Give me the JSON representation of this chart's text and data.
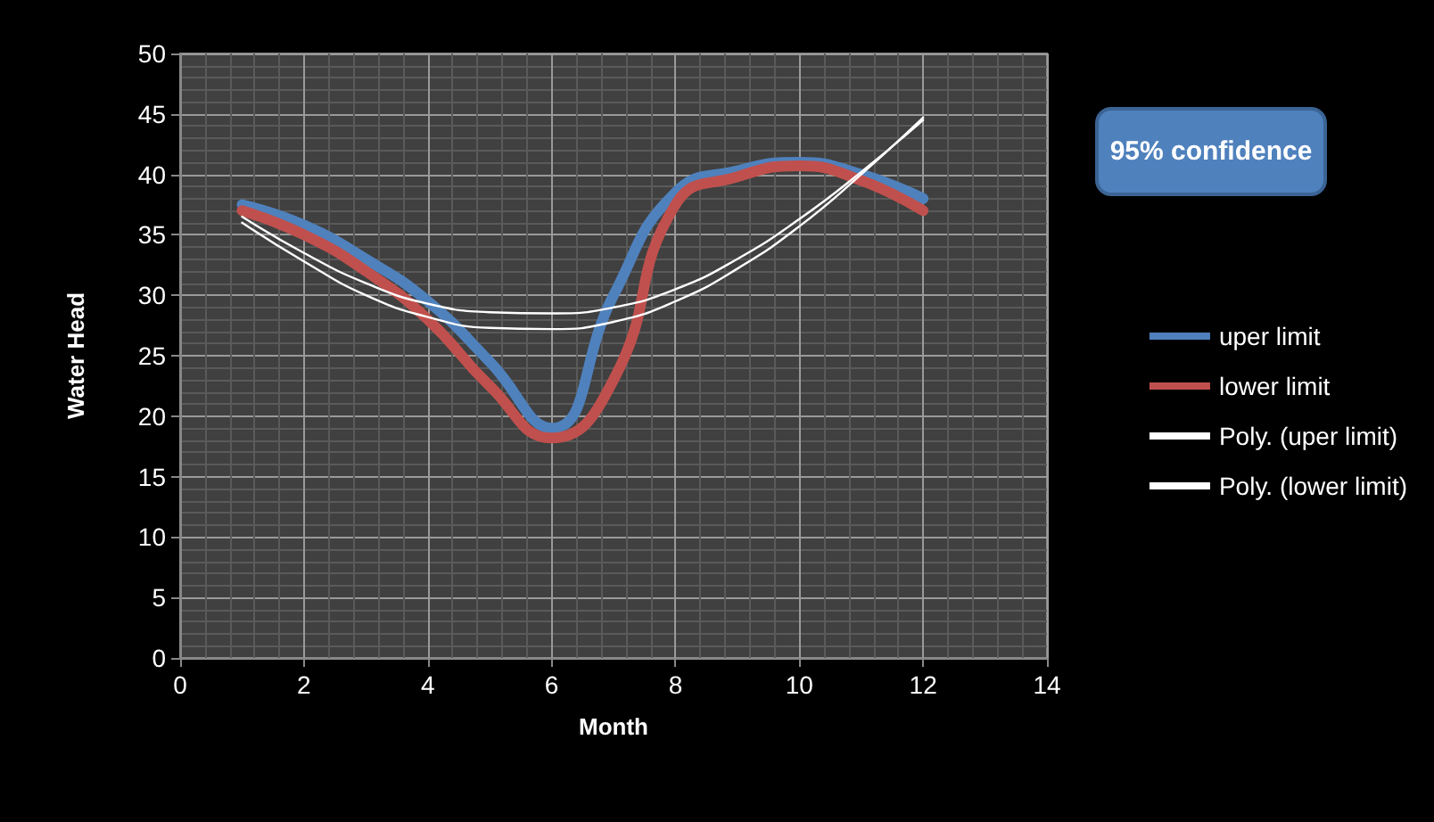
{
  "chart_data": {
    "type": "line",
    "xlabel": "Month",
    "ylabel": "Water Head",
    "x": [
      1,
      2,
      3,
      4,
      5,
      6,
      7,
      8,
      9,
      10,
      11,
      12
    ],
    "series": [
      {
        "name": "uper limit",
        "color": "#4f81bd",
        "values": [
          37.5,
          35.8,
          33,
          29.5,
          24.5,
          19,
          30,
          38.5,
          40.3,
          41,
          40,
          38
        ]
      },
      {
        "name": "lower limit",
        "color": "#c0504d",
        "values": [
          37,
          35,
          32,
          28,
          22.5,
          18.2,
          23,
          37.5,
          39.8,
          40.7,
          39.5,
          37
        ]
      },
      {
        "name": "Poly. (uper limit)",
        "color": "#ffffff",
        "values": [
          36.5,
          33.5,
          31,
          29.3,
          28.6,
          28.5,
          29,
          30.5,
          33,
          36.3,
          40.2,
          44.5
        ]
      },
      {
        "name": "Poly. (lower limit)",
        "color": "#ffffff",
        "values": [
          36,
          32.8,
          30,
          28.2,
          27.3,
          27.2,
          27.8,
          29.5,
          32.2,
          35.7,
          40,
          44.7
        ]
      }
    ],
    "annotations": [
      "95% confidence"
    ],
    "xlim": [
      0,
      14
    ],
    "xticks": [
      0,
      2,
      4,
      6,
      8,
      10,
      12,
      14
    ],
    "ylim": [
      0,
      50
    ],
    "yticks": [
      0,
      5,
      10,
      15,
      20,
      25,
      30,
      35,
      40,
      45,
      50
    ],
    "grid": true,
    "legend": "right",
    "marker": "none",
    "line_style": "solid"
  }
}
